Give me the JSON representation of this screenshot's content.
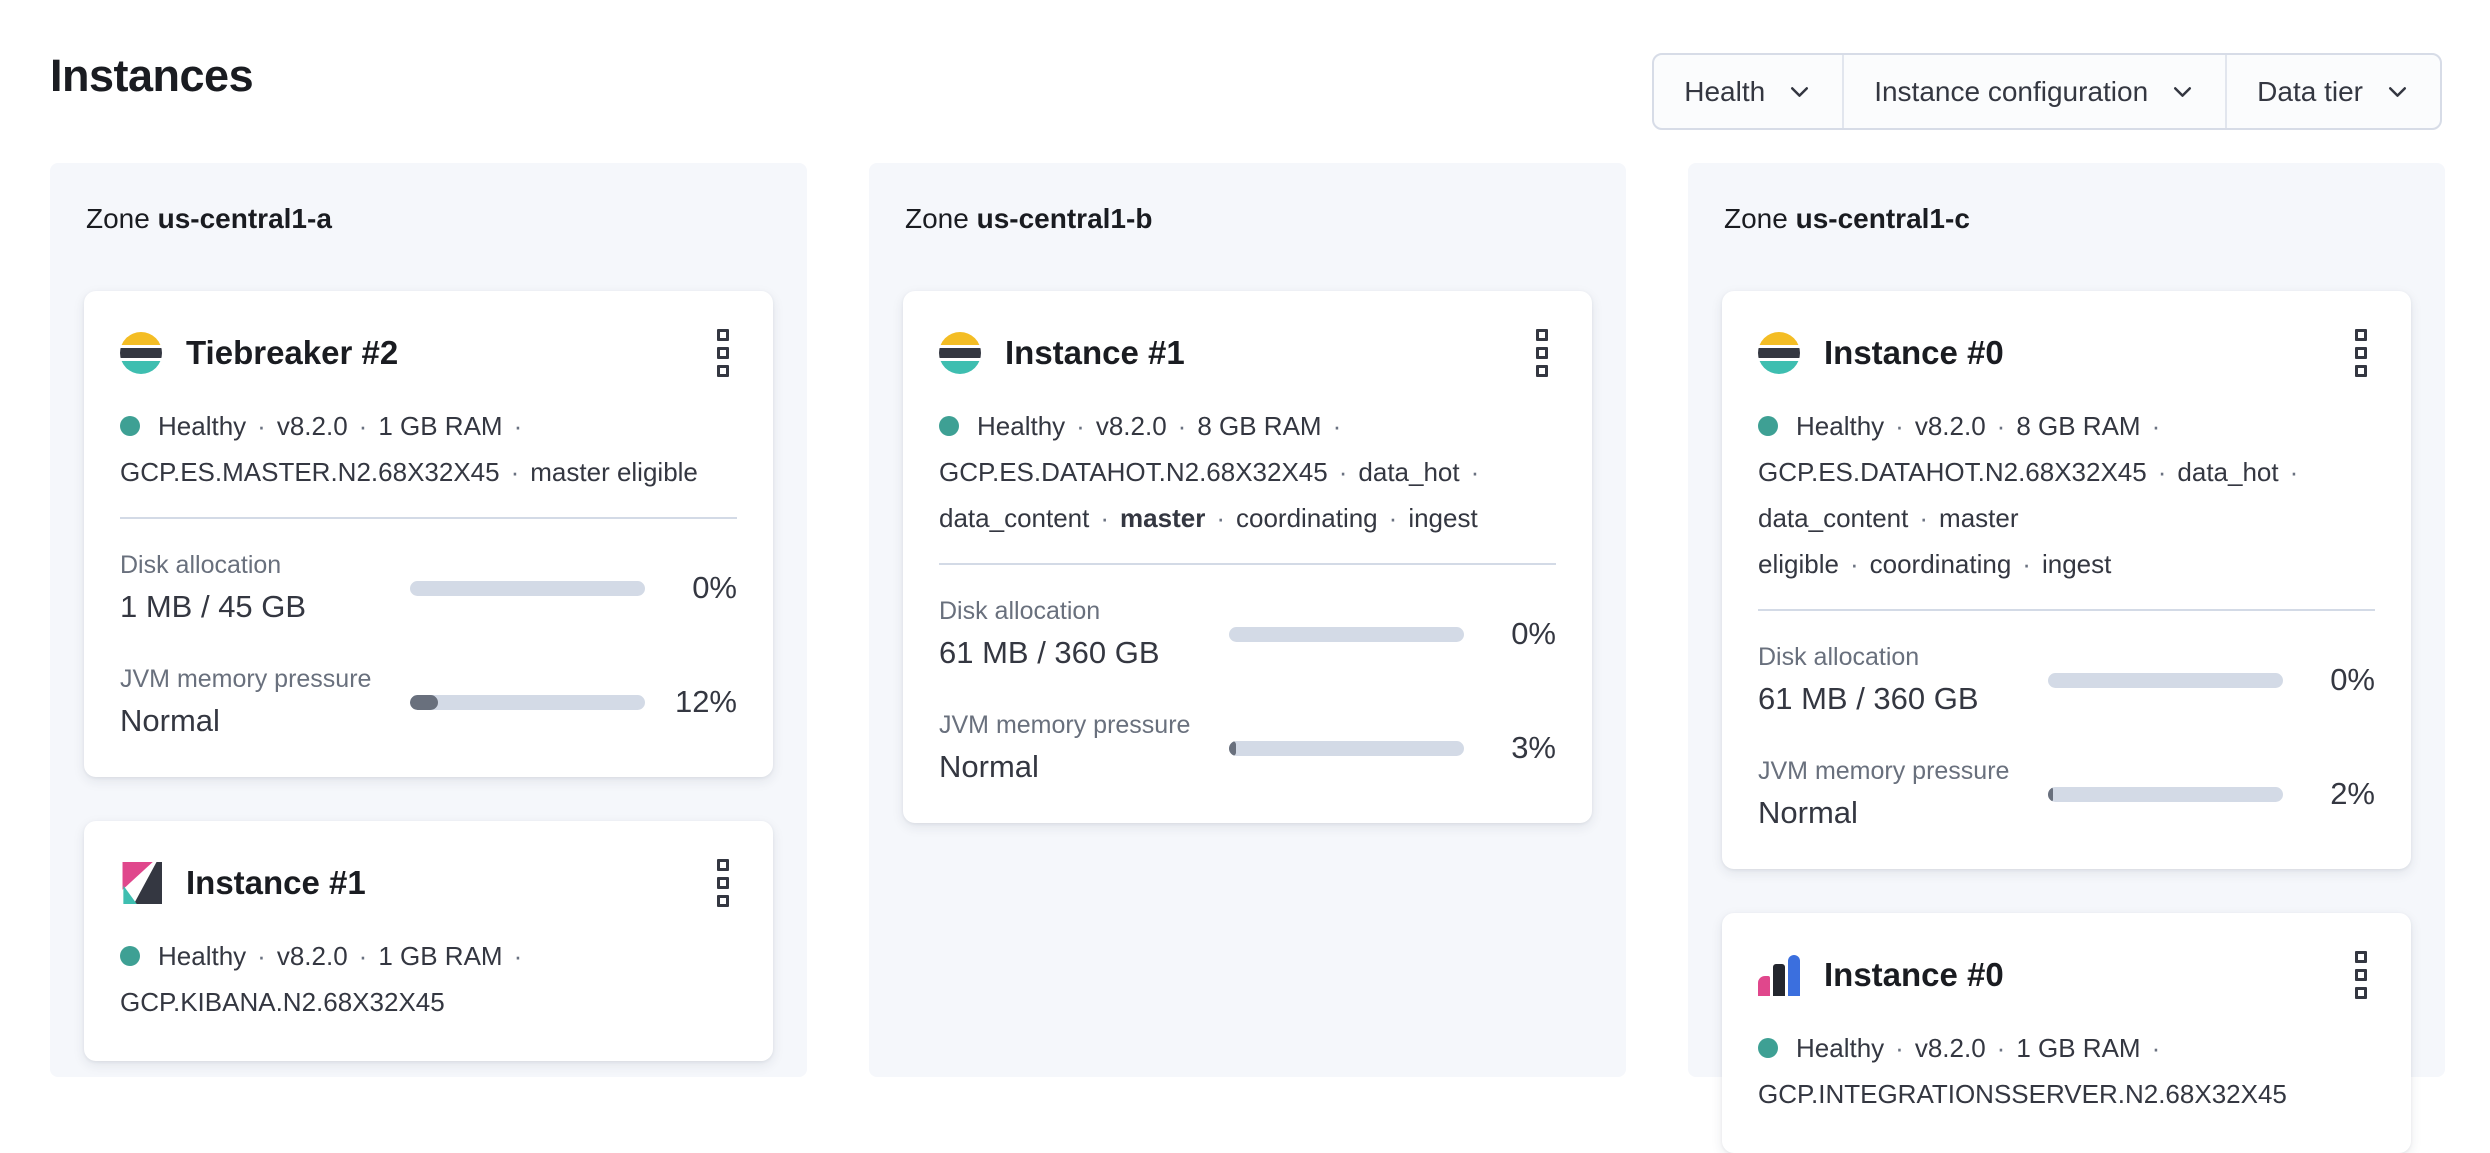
{
  "page": {
    "title": "Instances"
  },
  "toolbar": {
    "filters": [
      {
        "label": "Health",
        "icon": "chevron-down-icon"
      },
      {
        "label": "Instance configuration",
        "icon": "chevron-down-icon"
      },
      {
        "label": "Data tier",
        "icon": "chevron-down-icon"
      }
    ]
  },
  "colors": {
    "healthy_dot": "#3EA094",
    "bar_track": "#D3DAE6",
    "bar_fill": "#69707D",
    "logo_yellow": "#F4BD24",
    "logo_teal": "#3EBEB0",
    "logo_dark": "#343741",
    "logo_pink": "#E0478C",
    "logo_blue": "#3B6FDE"
  },
  "zones": [
    {
      "label": "Zone",
      "name": "us-central1-a",
      "cards": [
        {
          "icon": "elasticsearch-logo-icon",
          "title": "Tiebreaker #2",
          "menu_icon": "boxes-vertical-icon",
          "health": "Healthy",
          "status_tokens": [
            {
              "text": "Healthy",
              "health_dot": true
            },
            {
              "text": "v8.2.0"
            },
            {
              "text": "1 GB RAM",
              "break_after": true
            },
            {
              "text": "GCP.ES.MASTER.N2.68X32X45"
            },
            {
              "text": "master eligible"
            }
          ],
          "metrics": [
            {
              "label": "Disk allocation",
              "value": "1 MB / 45 GB",
              "percent": 0,
              "percent_label": "0%"
            },
            {
              "label": "JVM memory pressure",
              "value": "Normal",
              "percent": 12,
              "percent_label": "12%"
            }
          ]
        },
        {
          "icon": "kibana-logo-icon",
          "title": "Instance #1",
          "menu_icon": "boxes-vertical-icon",
          "health": "Healthy",
          "status_tokens": [
            {
              "text": "Healthy",
              "health_dot": true
            },
            {
              "text": "v8.2.0"
            },
            {
              "text": "1 GB RAM",
              "break_after": true
            },
            {
              "text": "GCP.KIBANA.N2.68X32X45"
            }
          ],
          "metrics": []
        }
      ]
    },
    {
      "label": "Zone",
      "name": "us-central1-b",
      "cards": [
        {
          "icon": "elasticsearch-logo-icon",
          "title": "Instance #1",
          "menu_icon": "boxes-vertical-icon",
          "health": "Healthy",
          "status_tokens": [
            {
              "text": "Healthy",
              "health_dot": true
            },
            {
              "text": "v8.2.0"
            },
            {
              "text": "8 GB RAM",
              "break_after": true
            },
            {
              "text": "GCP.ES.DATAHOT.N2.68X32X45"
            },
            {
              "text": "data_hot",
              "break_after": true
            },
            {
              "text": "data_content"
            },
            {
              "text": "master",
              "bold": true
            },
            {
              "text": "coordinating"
            },
            {
              "text": "ingest"
            }
          ],
          "metrics": [
            {
              "label": "Disk allocation",
              "value": "61 MB / 360 GB",
              "percent": 0,
              "percent_label": "0%"
            },
            {
              "label": "JVM memory pressure",
              "value": "Normal",
              "percent": 3,
              "percent_label": "3%"
            }
          ]
        }
      ]
    },
    {
      "label": "Zone",
      "name": "us-central1-c",
      "cards": [
        {
          "icon": "elasticsearch-logo-icon",
          "title": "Instance #0",
          "menu_icon": "boxes-vertical-icon",
          "health": "Healthy",
          "status_tokens": [
            {
              "text": "Healthy",
              "health_dot": true
            },
            {
              "text": "v8.2.0"
            },
            {
              "text": "8 GB RAM",
              "break_after": true
            },
            {
              "text": "GCP.ES.DATAHOT.N2.68X32X45"
            },
            {
              "text": "data_hot",
              "break_after": true
            },
            {
              "text": "data_content"
            },
            {
              "text": "master eligible"
            },
            {
              "text": "coordinating"
            },
            {
              "text": "ingest"
            }
          ],
          "metrics": [
            {
              "label": "Disk allocation",
              "value": "61 MB / 360 GB",
              "percent": 0,
              "percent_label": "0%"
            },
            {
              "label": "JVM memory pressure",
              "value": "Normal",
              "percent": 2,
              "percent_label": "2%"
            }
          ]
        },
        {
          "icon": "integrations-server-logo-icon",
          "title": "Instance #0",
          "menu_icon": "boxes-vertical-icon",
          "health": "Healthy",
          "status_tokens": [
            {
              "text": "Healthy",
              "health_dot": true
            },
            {
              "text": "v8.2.0"
            },
            {
              "text": "1 GB RAM",
              "break_after": true
            },
            {
              "text": "GCP.INTEGRATIONSSERVER.N2.68X32X45"
            }
          ],
          "metrics": []
        }
      ]
    }
  ]
}
